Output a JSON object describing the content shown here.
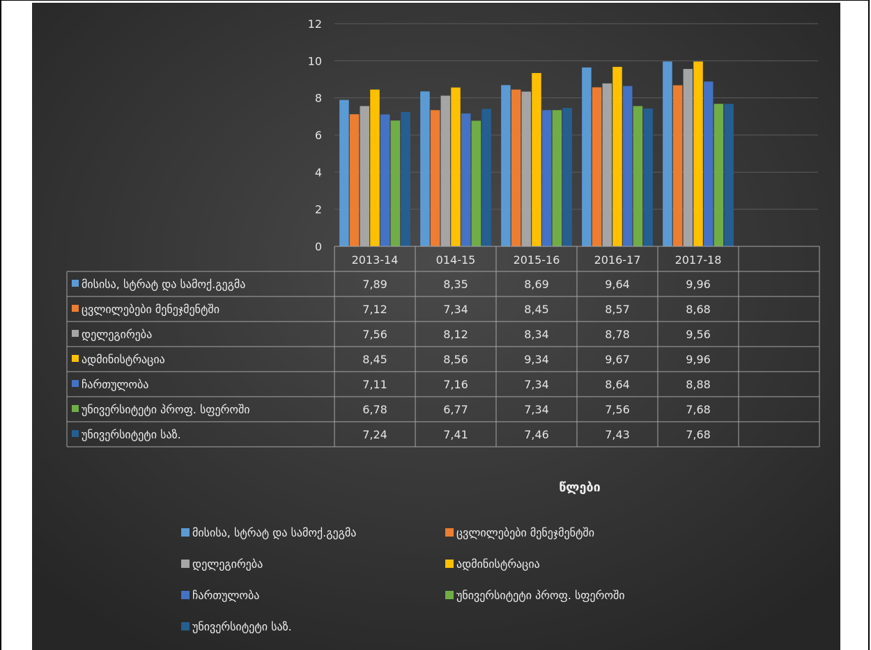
{
  "chart_data": {
    "type": "bar",
    "categories": [
      "2013-14",
      "014-15",
      "2015-16",
      "2016-17",
      "2017-18"
    ],
    "series": [
      {
        "name": "მისისა, სტრატ და სამოქ.გეგმა",
        "values": [
          "7,89",
          "8,35",
          "8,69",
          "9,64",
          "9,96"
        ],
        "color": "#5b9bd5"
      },
      {
        "name": "ცვლილებები მენეჯმენტში",
        "values": [
          "7,12",
          "7,34",
          "8,45",
          "8,57",
          "8,68"
        ],
        "color": "#ed7d31"
      },
      {
        "name": "დელეგირება",
        "values": [
          "7,56",
          "8,12",
          "8,34",
          "8,78",
          "9,56"
        ],
        "color": "#a5a5a5"
      },
      {
        "name": "ადმინისტრაცია",
        "values": [
          "8,45",
          "8,56",
          "9,34",
          "9,67",
          "9,96"
        ],
        "color": "#ffc000"
      },
      {
        "name": "ჩართულობა",
        "values": [
          "7,11",
          "7,16",
          "7,34",
          "8,64",
          "8,88"
        ],
        "color": "#4472c4"
      },
      {
        "name": "უნივერსიტეტი პროფ. სფეროში",
        "values": [
          "6,78",
          "6,77",
          "7,34",
          "7,56",
          "7,68"
        ],
        "color": "#70ad47"
      },
      {
        "name": "უნივერსიტეტი საზ.",
        "values": [
          "7,24",
          "7,41",
          "7,46",
          "7,43",
          "7,68"
        ],
        "color": "#255e91"
      }
    ],
    "y_ticks": [
      "0",
      "2",
      "4",
      "6",
      "8",
      "10",
      "12"
    ],
    "ylim": [
      0,
      12
    ],
    "xlabel": "წლები",
    "grid": true,
    "legend": "bottom",
    "background": "#3a3a3a"
  }
}
